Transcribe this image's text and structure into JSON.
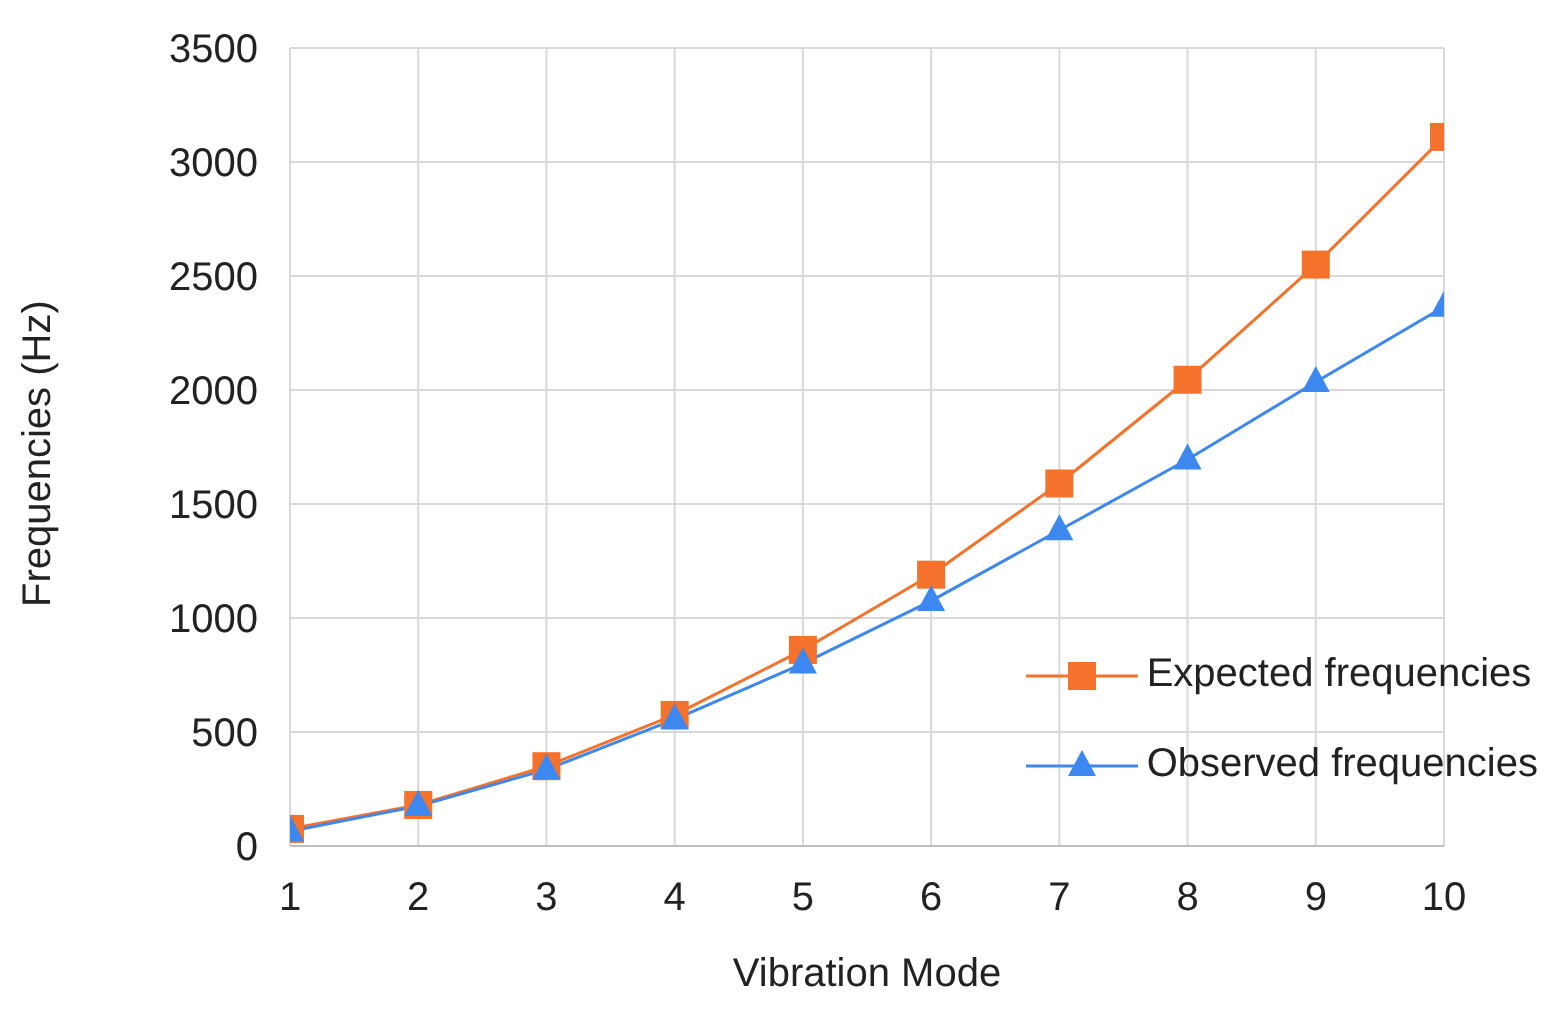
{
  "chart_data": {
    "type": "line",
    "xlabel": "Vibration Mode",
    "ylabel": "Frequencies (Hz)",
    "x": [
      1,
      2,
      3,
      4,
      5,
      6,
      7,
      8,
      9,
      10
    ],
    "xlim": [
      1,
      10
    ],
    "xticks": [
      1,
      2,
      3,
      4,
      5,
      6,
      7,
      8,
      9,
      10
    ],
    "ylim": [
      0,
      3500
    ],
    "yticks": [
      0,
      500,
      1000,
      1500,
      2000,
      2500,
      3000,
      3500
    ],
    "grid": true,
    "legend": "bottom right",
    "line_style": "solid",
    "series": [
      {
        "name": "Expected frequencies",
        "color": "#f4722b",
        "marker": "square",
        "values": [
          75,
          180,
          350,
          575,
          860,
          1190,
          1590,
          2045,
          2550,
          3110
        ]
      },
      {
        "name": "Observed frequencies",
        "color": "#3c87f0",
        "marker": "triangle",
        "values": [
          65,
          175,
          335,
          555,
          800,
          1075,
          1385,
          1695,
          2035,
          2365
        ]
      }
    ]
  }
}
